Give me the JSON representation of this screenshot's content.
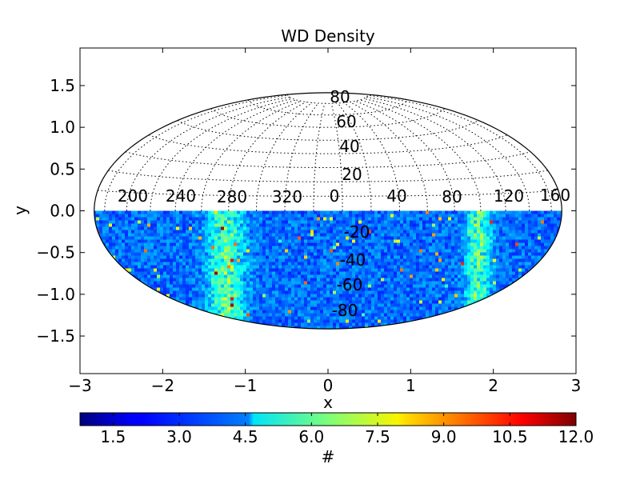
{
  "chart_data": {
    "type": "heatmap",
    "title": "WD Density",
    "xlabel": "x",
    "ylabel": "y",
    "projection": "hammer-aitoff (full ellipse, only southern half filled)",
    "xlim": [
      -3,
      3
    ],
    "ylim": [
      -1.95,
      1.95
    ],
    "x_ticks": [
      "−3",
      "−2",
      "−1",
      "0",
      "1",
      "2",
      "3"
    ],
    "y_ticks": [
      "1.5",
      "1.0",
      "0.5",
      "0.0",
      "−0.5",
      "−1.0",
      "−1.5"
    ],
    "longitude_labels": [
      "200",
      "240",
      "280",
      "320",
      "0",
      "40",
      "80",
      "120",
      "160"
    ],
    "latitude_labels_north": [
      "80",
      "60",
      "40",
      "20"
    ],
    "latitude_labels_south": [
      "-20",
      "-40",
      "-60",
      "-80"
    ],
    "colorbar": {
      "label": "#",
      "range": [
        0.75,
        12.0
      ],
      "ticks": [
        "1.5",
        "3.0",
        "4.5",
        "6.0",
        "7.5",
        "9.0",
        "10.5",
        "12.0"
      ],
      "colormap": "jet"
    },
    "density_notes": "Mostly low counts (~1-3); enhanced bands (~4-7) near x≈-1.2 and x≈+1.8, isolated peaks up to ~12."
  }
}
